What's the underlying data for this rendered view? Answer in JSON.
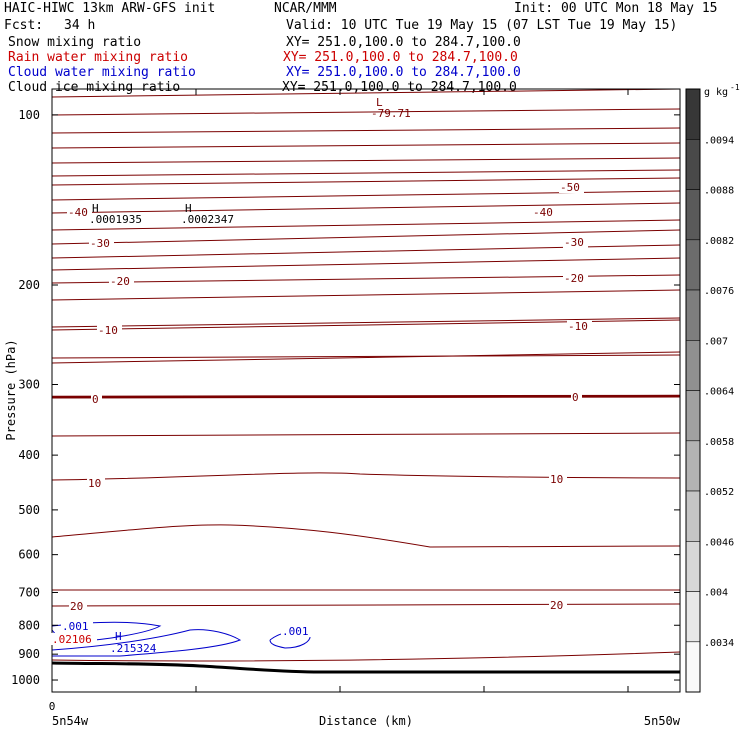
{
  "header": {
    "model": "HAIC-HIWC 13km ARW-GFS init",
    "org": "NCAR/MMM",
    "init": "Init: 00 UTC Mon 18 May 15",
    "fcst_label": "Fcst:",
    "fcst_value": "34 h",
    "valid": "Valid: 10 UTC Tue 19 May 15 (07 LST Tue 19 May 15)"
  },
  "fields": [
    {
      "name": "Snow mixing ratio",
      "xy": "XY= 251.0,100.0 to 284.7,100.0",
      "color": "#000000"
    },
    {
      "name": "Rain water mixing ratio",
      "xy": "XY= 251.0,100.0 to 284.7,100.0",
      "color": "#cc0000"
    },
    {
      "name": "Cloud water mixing ratio",
      "xy": "XY= 251.0,100.0 to 284.7,100.0",
      "color": "#0000cc"
    },
    {
      "name": "Cloud ice mixing ratio",
      "xy": "XY= 251.0,100.0 to 284.7,100.0",
      "color": "#000000"
    }
  ],
  "colors": {
    "temperature": "#7a0000",
    "cloud_water": "#0000cc",
    "rain": "#cc0000",
    "terrain": "#000000"
  },
  "chart_data": {
    "type": "contour",
    "ylabel": "Pressure (hPa)",
    "xlabel": "Distance (km)",
    "y_scale": "log",
    "ylim": [
      1050,
      90
    ],
    "y_ticks": [
      100,
      200,
      300,
      400,
      500,
      600,
      700,
      800,
      900,
      1000
    ],
    "x_tick_label": "0",
    "x_start_label": "5n54w",
    "x_end_label": "5n50w",
    "grid": false,
    "temperature_labels": [
      "-50",
      "-40",
      "-40",
      "-30",
      "-30",
      "-20",
      "-20",
      "-10",
      "-10",
      "0",
      "0",
      "10",
      "10",
      "20",
      "20"
    ],
    "extrema": [
      {
        "kind": "L",
        "value": "-79.71",
        "field": "temperature"
      },
      {
        "kind": "H",
        "value": ".0001935",
        "field": "snow"
      },
      {
        "kind": "H",
        "value": ".0002347",
        "field": "snow"
      },
      {
        "kind": "H",
        "value": ".215324",
        "field": "cloud_water"
      }
    ],
    "cloud_water_labels": [
      ".001",
      ".001"
    ],
    "rain_label": ".02106",
    "colorbar": {
      "unit": "g kg",
      "unit_exponent": "-1",
      "labels": [
        ".0094",
        ".0088",
        ".0082",
        ".0076",
        ".007",
        ".0064",
        ".0058",
        ".0052",
        ".0046",
        ".004",
        ".0034"
      ]
    }
  }
}
